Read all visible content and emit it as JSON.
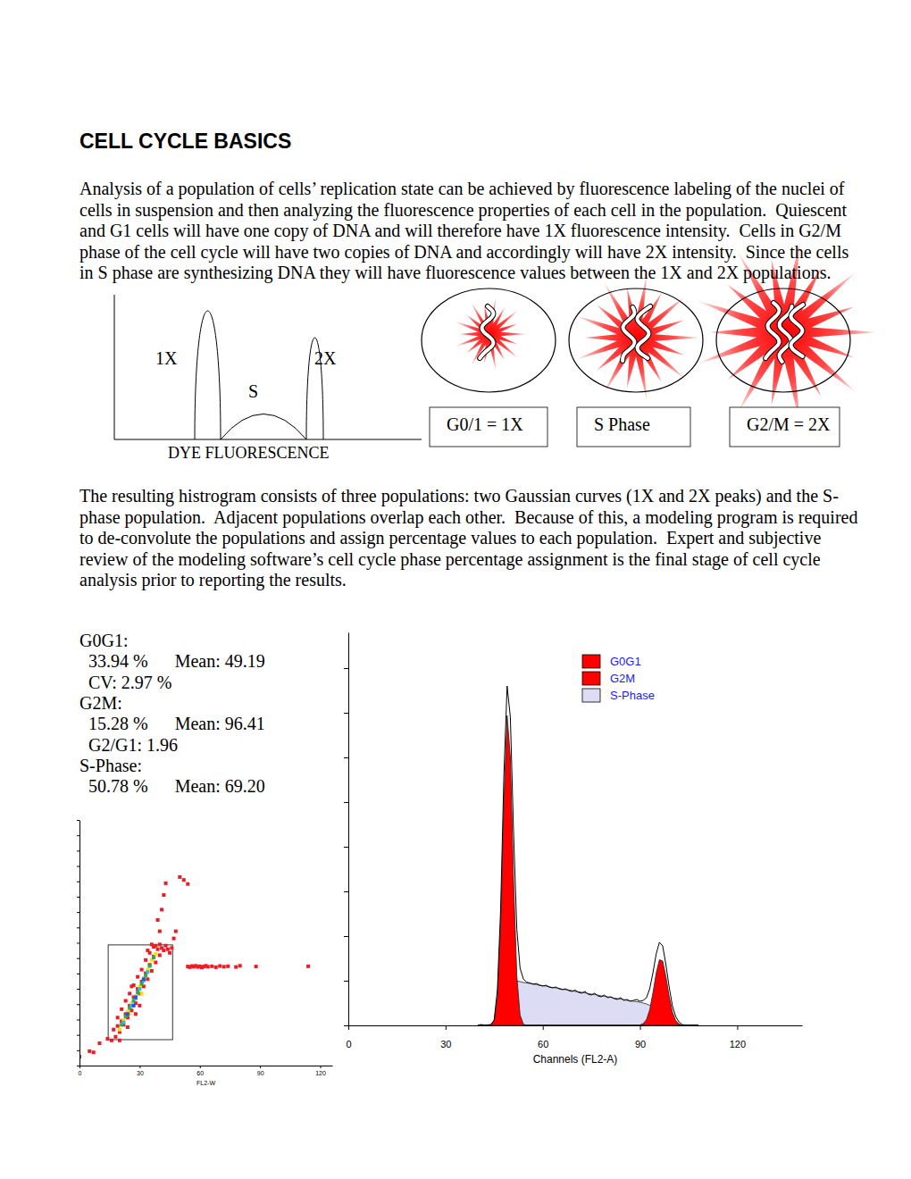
{
  "title": "CELL CYCLE BASICS",
  "paragraphs": [
    [
      "Analysis of a population of cells’ replication state can be achieved by fluorescence labeling of the nuclei of",
      "cells in suspension and then analyzing the fluorescence properties of each cell in the population.  Quiescent",
      "and G1 cells will have one copy of DNA and will therefore have 1X fluorescence intensity.  Cells in G2/M",
      "phase of the cell cycle will have two copies of DNA and accordingly will have 2X intensity.  Since the cells",
      "in S phase are synthesizing DNA they will have fluorescence values between the 1X and 2X populations."
    ],
    [
      "The resulting histrogram consists of three populations: two Gaussian curves (1X and 2X peaks) and the S-",
      "phase population.  Adjacent populations overlap each other.  Because of this, a modeling program is required",
      "to de-convolute the populations and assign percentage values to each population.  Expert and subjective",
      "review of the modeling software’s cell cycle phase percentage assignment is the final stage of cell cycle",
      "analysis prior to reporting the results."
    ]
  ],
  "histogram_sketch": {
    "labels": [
      "1X",
      "S",
      "2X"
    ],
    "axis_label": "DYE FLUORESCENCE"
  },
  "cells": [
    "G0/1 = 1X",
    "S Phase",
    "G2/M = 2X"
  ],
  "stats": [
    "G0G1:",
    "  33.94 %      Mean: 49.19",
    "  CV: 2.97 %",
    "G2M:",
    "  15.28 %      Mean: 96.41",
    "  G2/G1: 1.96",
    "S-Phase:",
    "  50.78 %      Mean: 69.20"
  ],
  "chart_data": [
    {
      "type": "scatter",
      "xlabel": "FL2-W",
      "xlim": [
        0,
        126
      ],
      "ylim": [
        0,
        1024
      ],
      "xticks": [
        0,
        30,
        60,
        90,
        120
      ],
      "yticks": [
        0,
        64,
        128,
        192,
        256,
        320,
        384,
        448,
        512,
        576,
        640,
        704,
        768,
        832,
        896,
        960,
        1024
      ],
      "tick_labels": "x",
      "marker": "square",
      "gate": {
        "x": [
          14.3,
          46.4
        ],
        "y": [
          108,
          503
        ]
      },
      "series": [
        {
          "color": "#ee1c24",
          "x": [
            16,
            18,
            17,
            19,
            20,
            21,
            19,
            22,
            23,
            21,
            24,
            25,
            23,
            26,
            27,
            25,
            28,
            29,
            27,
            30,
            31,
            29,
            32,
            33,
            31,
            34,
            35,
            33,
            36,
            37,
            35,
            38,
            39,
            37,
            40,
            41,
            36,
            42,
            44,
            45,
            43,
            34,
            38,
            40,
            46,
            28,
            20,
            24,
            30,
            26,
            0,
            5,
            10,
            14,
            7,
            39,
            42,
            43,
            50,
            52,
            54,
            41,
            40,
            48,
            47,
            54,
            55,
            56,
            57,
            58,
            59,
            60,
            61,
            62,
            63,
            64,
            66,
            68,
            70,
            72,
            74,
            78,
            80,
            88,
            114
          ],
          "values": [
            105,
            120,
            150,
            165,
            140,
            185,
            200,
            170,
            215,
            235,
            200,
            250,
            270,
            230,
            285,
            300,
            260,
            320,
            335,
            300,
            350,
            370,
            330,
            385,
            400,
            360,
            420,
            440,
            395,
            455,
            470,
            430,
            485,
            495,
            460,
            490,
            505,
            480,
            485,
            470,
            500,
            480,
            500,
            505,
            490,
            215,
            105,
            160,
            250,
            330,
            37,
            60,
            93,
            112,
            55,
            607,
            711,
            760,
            786,
            774,
            757,
            650,
            560,
            560,
            530,
            413,
            410,
            415,
            412,
            416,
            411,
            414,
            409,
            413,
            416,
            412,
            414,
            410,
            415,
            412,
            414,
            411,
            416,
            413,
            414
          ]
        },
        {
          "color": "#ffe000",
          "x": [
            20,
            22,
            24,
            26,
            28,
            30,
            32,
            34,
            36,
            38,
            25,
            31
          ],
          "values": [
            150,
            190,
            225,
            260,
            290,
            330,
            365,
            400,
            440,
            465,
            215,
            300
          ]
        },
        {
          "color": "#22b14c",
          "x": [
            21,
            23,
            27,
            29,
            33,
            35,
            37,
            25,
            31
          ],
          "values": [
            170,
            205,
            270,
            305,
            375,
            415,
            450,
            240,
            340
          ]
        },
        {
          "color": "#19c8d8",
          "x": [
            22,
            26,
            30,
            34,
            28,
            32
          ],
          "values": [
            180,
            250,
            320,
            390,
            280,
            355
          ]
        },
        {
          "color": "#2050ff",
          "x": [
            24,
            28,
            32,
            27
          ],
          "values": [
            215,
            285,
            360,
            250
          ]
        }
      ]
    },
    {
      "type": "area",
      "xlabel": "Channels (FL2-A)",
      "xlim": [
        0,
        140
      ],
      "ylim": [
        0,
        880
      ],
      "xticks": [
        0,
        30,
        60,
        90,
        120
      ],
      "yticks": [
        0,
        100,
        200,
        300,
        400,
        500,
        600,
        700,
        800
      ],
      "tick_labels": "x",
      "legend": "top-right",
      "x": [
        40,
        41,
        42,
        43,
        44,
        45,
        46,
        47,
        48,
        49,
        50,
        51,
        52,
        53,
        54,
        55,
        56,
        57,
        58,
        59,
        60,
        61,
        62,
        63,
        64,
        65,
        66,
        67,
        68,
        69,
        70,
        71,
        72,
        73,
        74,
        75,
        76,
        77,
        78,
        79,
        80,
        81,
        82,
        83,
        84,
        85,
        86,
        87,
        88,
        89,
        90,
        91,
        92,
        93,
        94,
        95,
        96,
        97,
        98,
        99,
        100,
        101,
        102,
        103,
        104,
        105,
        106,
        107,
        108
      ],
      "series": [
        {
          "name": "G0G1",
          "color": "#ff0000",
          "values": [
            0,
            0,
            0,
            0,
            1,
            11,
            64,
            227,
            502,
            694,
            600,
            324,
            110,
            23,
            3,
            0,
            0,
            0,
            0,
            0,
            0,
            0,
            0,
            0,
            0,
            0,
            0,
            0,
            0,
            0,
            0,
            0,
            0,
            0,
            0,
            0,
            0,
            0,
            0,
            0,
            0,
            0,
            0,
            0,
            0,
            0,
            0,
            0,
            0,
            0,
            0,
            0,
            0,
            0,
            0,
            0,
            0,
            0,
            0,
            0,
            0,
            0,
            0,
            0,
            0,
            0,
            0,
            0,
            0
          ]
        },
        {
          "name": "G2M",
          "color": "#ff0000",
          "values": [
            0,
            0,
            0,
            0,
            0,
            0,
            0,
            0,
            0,
            0,
            0,
            0,
            0,
            0,
            0,
            0,
            0,
            0,
            0,
            0,
            0,
            0,
            0,
            0,
            0,
            0,
            0,
            0,
            0,
            0,
            0,
            0,
            0,
            0,
            0,
            0,
            0,
            0,
            0,
            0,
            0,
            0,
            0,
            0,
            0,
            0,
            0,
            0,
            0,
            0,
            1,
            4,
            13,
            35,
            73,
            117,
            147,
            144,
            109,
            65,
            30,
            11,
            3,
            0,
            0,
            0,
            0,
            0,
            0
          ]
        },
        {
          "name": "S-Phase",
          "color": "#dcdcf4",
          "values": [
            0,
            0,
            0,
            0,
            0,
            0,
            10,
            30,
            55,
            80,
            95,
            100,
            99,
            98,
            96,
            95,
            94,
            93,
            91,
            90,
            89,
            88,
            86,
            85,
            84,
            83,
            81,
            80,
            79,
            78,
            76,
            75,
            74,
            73,
            71,
            70,
            69,
            68,
            66,
            65,
            64,
            63,
            61,
            60,
            59,
            58,
            56,
            55,
            54,
            53,
            52,
            50,
            48,
            45,
            42,
            38,
            34,
            29,
            24,
            19,
            13,
            8,
            3,
            0,
            0,
            0,
            0,
            0,
            0
          ]
        },
        {
          "type": "line",
          "color": "#000000",
          "values": [
            0,
            2,
            0,
            1,
            2,
            12,
            80,
            260,
            560,
            760,
            690,
            430,
            215,
            128,
            104,
            97,
            95,
            92,
            94,
            90,
            88,
            90,
            86,
            84,
            86,
            82,
            80,
            82,
            78,
            76,
            79,
            74,
            72,
            76,
            70,
            68,
            72,
            66,
            64,
            68,
            62,
            64,
            60,
            58,
            62,
            56,
            58,
            54,
            56,
            58,
            54,
            56,
            62,
            82,
            118,
            160,
            186,
            178,
            136,
            86,
            44,
            20,
            8,
            2,
            0,
            0,
            0,
            0,
            0
          ]
        }
      ]
    }
  ]
}
